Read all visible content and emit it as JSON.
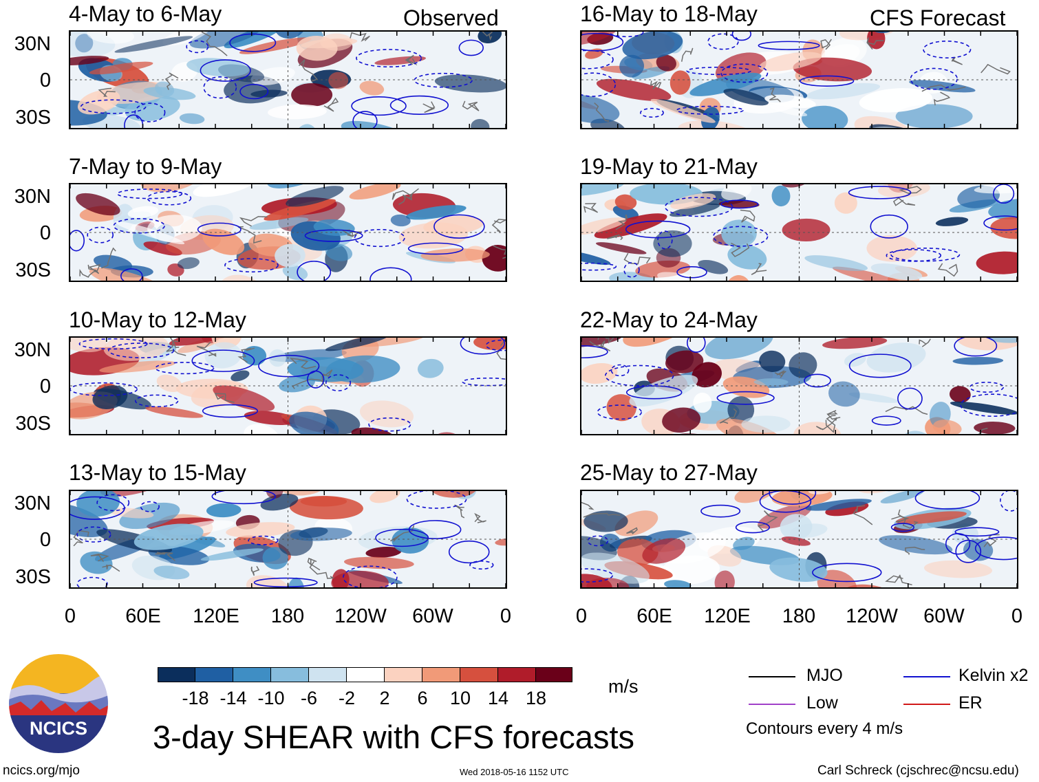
{
  "panels": {
    "left": [
      {
        "title": "4-May to 6-May",
        "tag": "Observed"
      },
      {
        "title": "7-May to 9-May"
      },
      {
        "title": "10-May to 12-May"
      },
      {
        "title": "13-May to 15-May"
      }
    ],
    "right": [
      {
        "title": "16-May to 18-May",
        "tag": "CFS Forecast"
      },
      {
        "title": "19-May to 21-May"
      },
      {
        "title": "22-May to 24-May"
      },
      {
        "title": "25-May to 27-May"
      }
    ]
  },
  "axes": {
    "lat_labels": [
      "30N",
      "0",
      "30S"
    ],
    "lon_labels": [
      "0",
      "60E",
      "120E",
      "180",
      "120W",
      "60W",
      "0"
    ]
  },
  "colorbar": {
    "colors": [
      "#0b2e5c",
      "#1f5fa3",
      "#3f8ec4",
      "#87bddd",
      "#cfe3f0",
      "#ffffff",
      "#fbd2c0",
      "#f19a78",
      "#d6503e",
      "#b01c2a",
      "#6a0019"
    ],
    "labels": [
      "-18",
      "-14",
      "-10",
      "-6",
      "-2",
      "2",
      "6",
      "10",
      "14",
      "18"
    ],
    "units": "m/s"
  },
  "legend": {
    "items": [
      {
        "label": "MJO",
        "color": "#000000"
      },
      {
        "label": "Kelvin x2",
        "color": "#1010d0"
      },
      {
        "label": "Low",
        "color": "#a040c8"
      },
      {
        "label": "ER",
        "color": "#d01818"
      }
    ],
    "note": "Contours every 4 m/s"
  },
  "logo": {
    "text": "NCICS"
  },
  "main_title": "3-day SHEAR with CFS forecasts",
  "footer": {
    "url": "ncics.org/mjo",
    "timestamp": "Wed 2018-05-16 1152 UTC",
    "credit": "Carl Schreck (cjschrec@ncsu.edu)"
  }
}
